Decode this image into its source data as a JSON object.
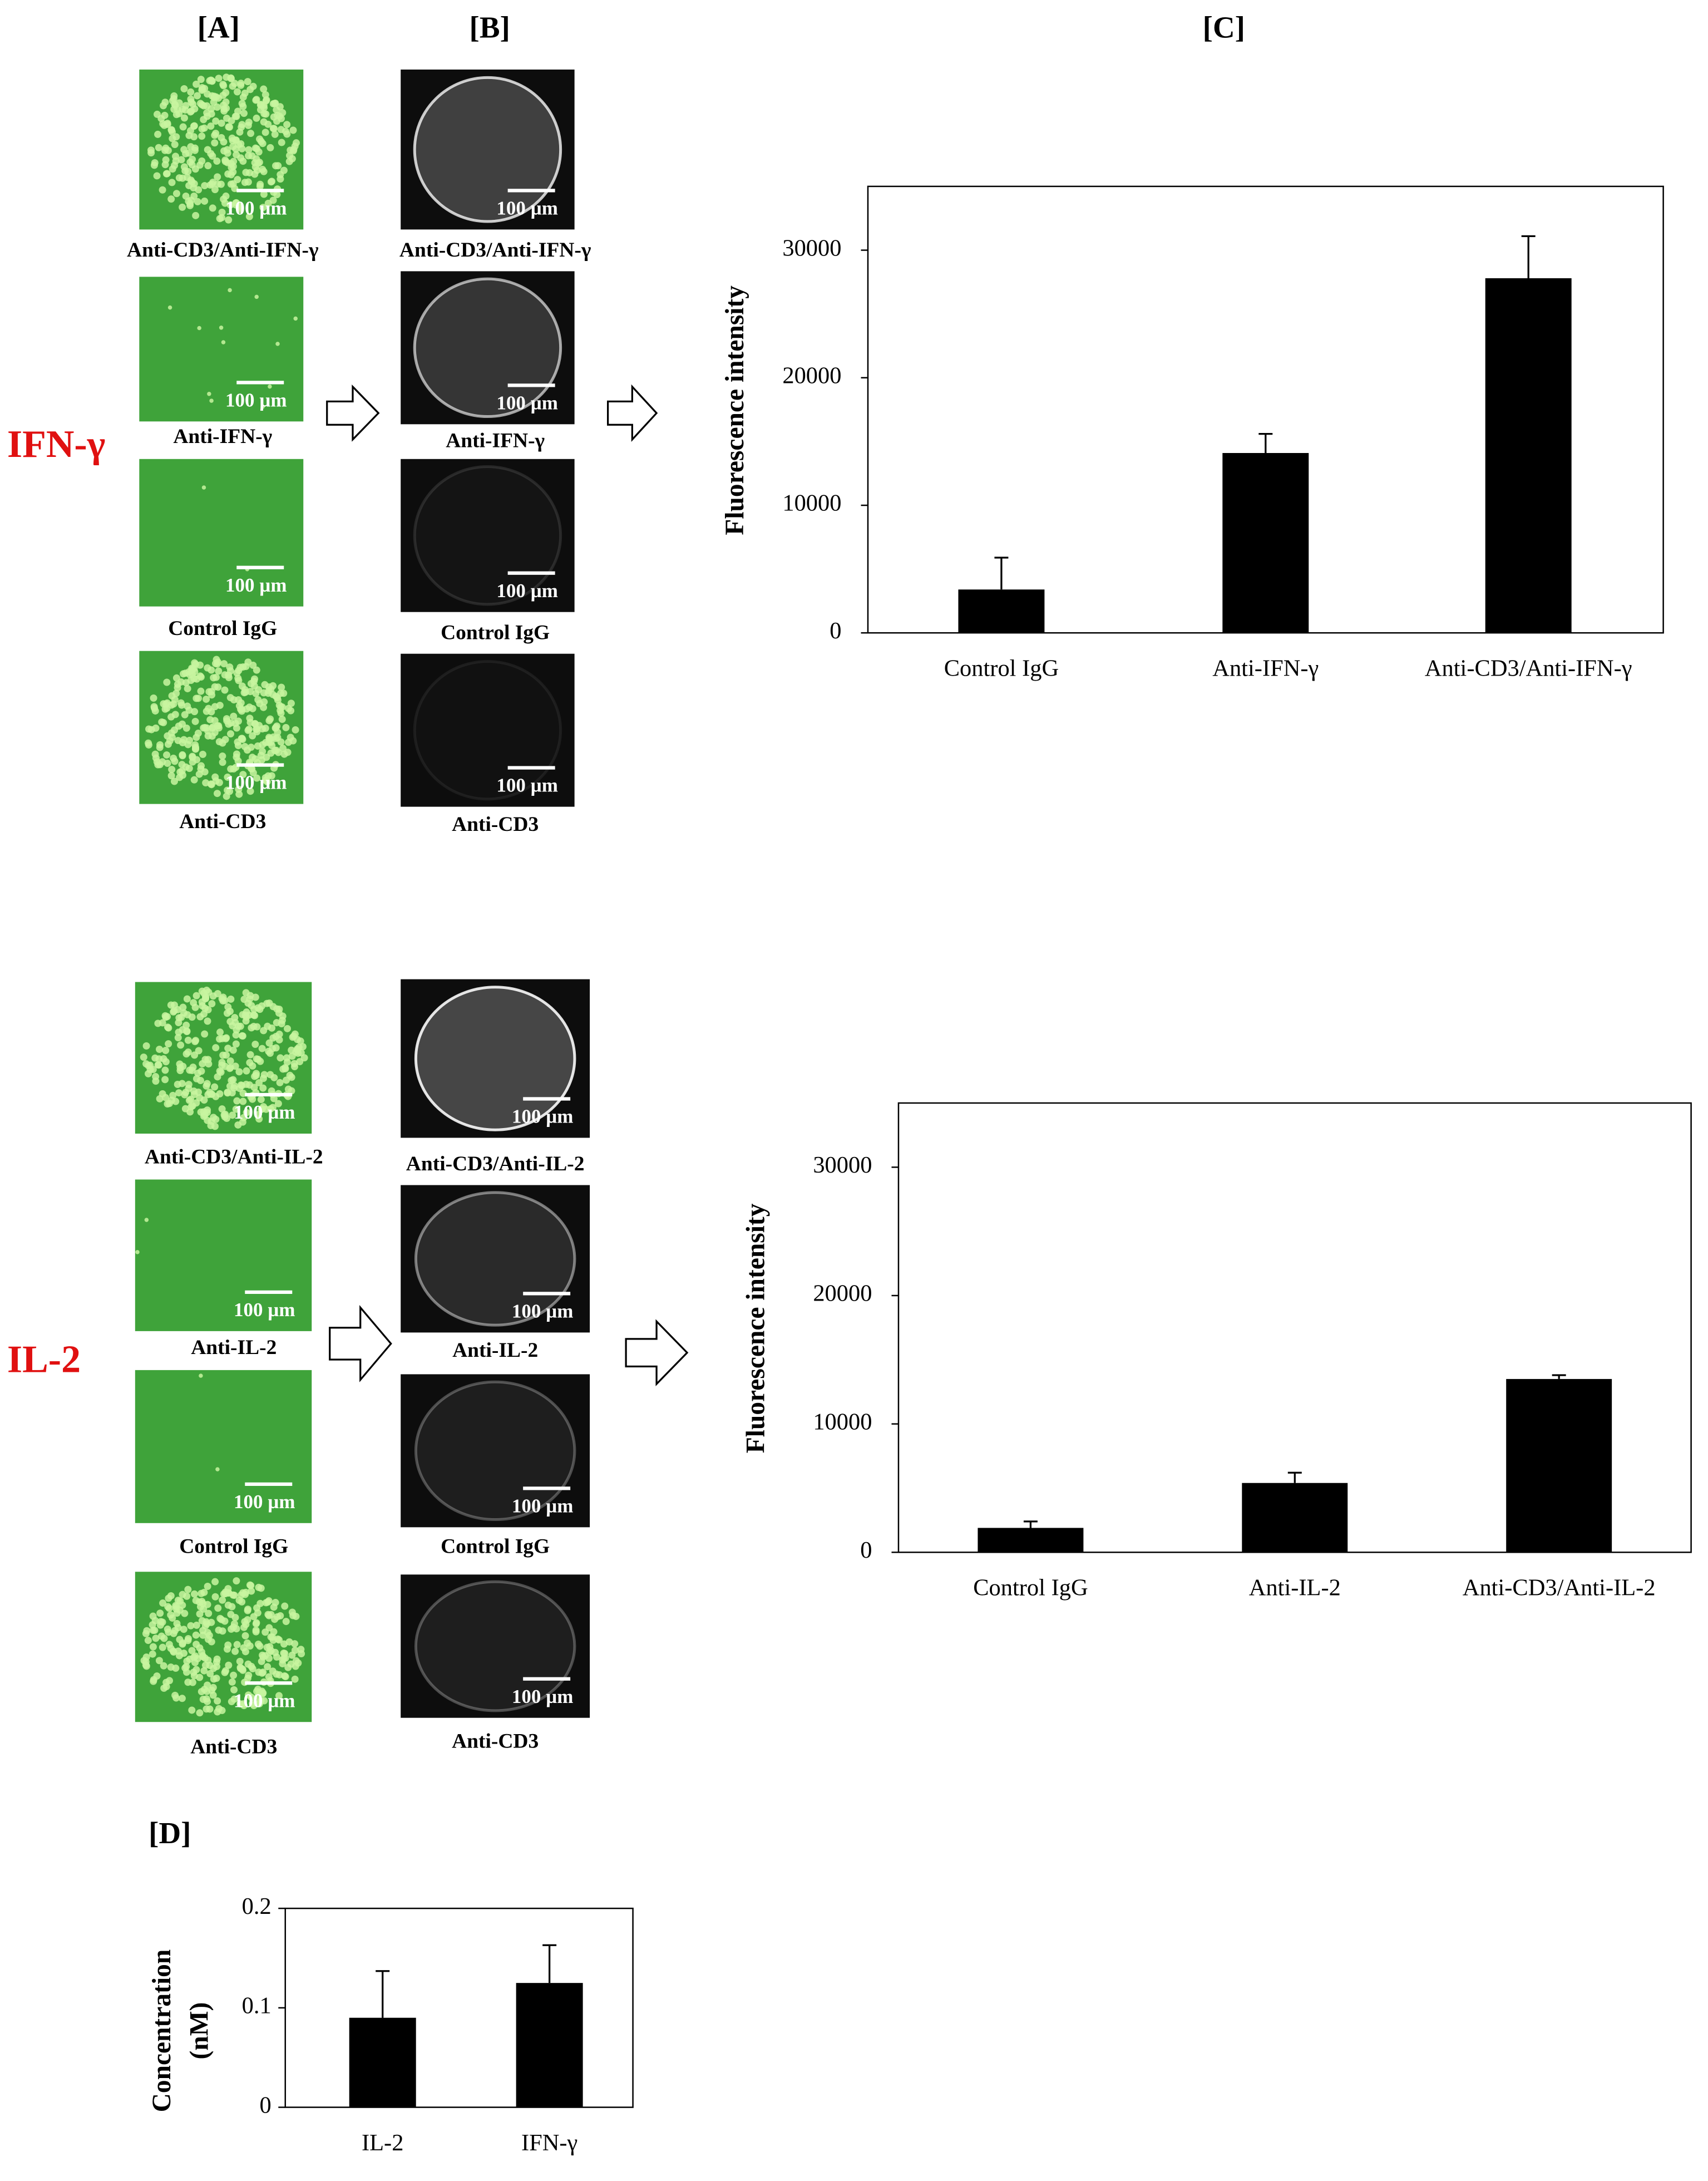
{
  "panel_labels": [
    "[A]",
    "[B]"
  ],
  "groups": [
    {
      "label": "IFN-γ",
      "images_a": [
        {
          "caption": "Anti-CD3/Anti-IFN-γ",
          "scale_bar": "100 µm"
        },
        {
          "caption": "Anti-IFN-γ",
          "scale_bar": "100 µm"
        },
        {
          "caption": "Control IgG",
          "scale_bar": "100 µm"
        },
        {
          "caption": "Anti-CD3",
          "scale_bar": "100 µm"
        }
      ],
      "images_b": [
        {
          "caption": "Anti-CD3/Anti-IFN-γ",
          "scale_bar": "100 µm"
        },
        {
          "caption": "Anti-IFN-γ",
          "scale_bar": "100 µm"
        },
        {
          "caption": "Control IgG",
          "scale_bar": "100 µm"
        },
        {
          "caption": "Anti-CD3",
          "scale_bar": "100 µm"
        }
      ]
    },
    {
      "label": "IL-2",
      "images_a": [
        {
          "caption": "Anti-CD3/Anti-IL-2",
          "scale_bar": "100 µm"
        },
        {
          "caption": "Anti-IL-2",
          "scale_bar": "100 µm"
        },
        {
          "caption": "Control IgG",
          "scale_bar": "100 µm"
        },
        {
          "caption": "Anti-CD3",
          "scale_bar": "100 µm"
        }
      ],
      "images_b": [
        {
          "caption": "Anti-CD3/Anti-IL-2",
          "scale_bar": "100 µm"
        },
        {
          "caption": "Anti-IL-2",
          "scale_bar": "100 µm"
        },
        {
          "caption": "Control IgG",
          "scale_bar": "100 µm"
        },
        {
          "caption": "Anti-CD3",
          "scale_bar": "100 µm"
        }
      ]
    }
  ],
  "chart_data": [
    {
      "type": "bar",
      "title": "[C]",
      "ylabel": "Fluorescence intensity",
      "categories": [
        "Control IgG",
        "Anti-IFN-γ",
        "Anti-CD3/Anti-IFN-γ"
      ],
      "values": [
        3400,
        14100,
        27800
      ],
      "errors": [
        2500,
        1500,
        3300
      ],
      "color": "#000000",
      "ylim": [
        0,
        35000
      ],
      "yticks": [
        0,
        10000,
        20000,
        30000
      ]
    },
    {
      "type": "bar",
      "ylabel": "Fluorescence intensity",
      "categories": [
        "Control IgG",
        "Anti-IL-2",
        "Anti-CD3/Anti-IL-2"
      ],
      "values": [
        1900,
        5400,
        13500
      ],
      "errors": [
        500,
        800,
        300
      ],
      "color": "#000000",
      "ylim": [
        0,
        35000
      ],
      "yticks": [
        0,
        10000,
        20000,
        30000
      ]
    },
    {
      "type": "bar",
      "title": "[D]",
      "ylabel_lines": [
        "Concentration",
        "(nM)"
      ],
      "categories": [
        "IL-2",
        "IFN-γ"
      ],
      "values": [
        0.09,
        0.125
      ],
      "errors": [
        0.047,
        0.038
      ],
      "color": "#000000",
      "ylim": [
        0,
        0.2
      ],
      "yticks": [
        0,
        0.1,
        0.2
      ]
    }
  ]
}
